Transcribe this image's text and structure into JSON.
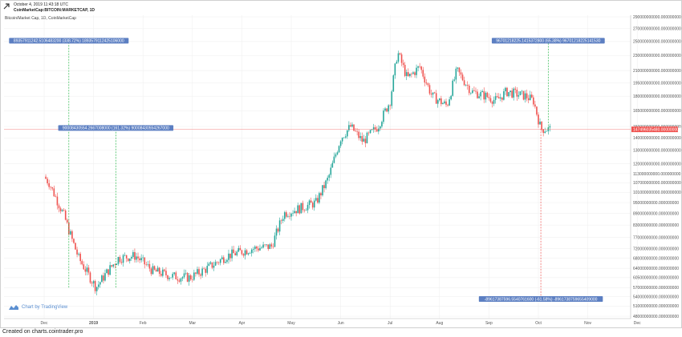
{
  "header": {
    "date": "October 4, 2019 11:43:18 UTC",
    "symbol": "CoinMarketCap:BITCOIN:MARKETCAP, 1D",
    "series": "Bitcoin/Market Cap, 1D, CoinMarketCap"
  },
  "badge": {
    "text": "Chart by TradingView",
    "icon": "tradingview-logo-icon"
  },
  "footer": {
    "text": "Created on charts.cointrader.pro"
  },
  "colors": {
    "up": "#26a69a",
    "down": "#ef5350",
    "measure_up": "#2db84d",
    "measure_down": "#ef5350",
    "label_bg": "#5c7fc2",
    "price_tag": "#ef5350"
  },
  "chart_data": {
    "type": "candlestick",
    "x_ticks": [
      "Dec",
      "2019",
      "Feb",
      "Mar",
      "Apr",
      "May",
      "Jun",
      "Jul",
      "Aug",
      "Sep",
      "Oct",
      "Nov",
      "Dec"
    ],
    "y_ticks": [
      "290000000000.000000000",
      "270000000000.000000000",
      "250000000000.000000000",
      "230000000000.000000000",
      "210000000000.000000000",
      "195000000000.000000000",
      "180000000000.000000000",
      "165000000000.000000000",
      "150000000000.000000000",
      "140000000000.000000000",
      "130000000000.000000000",
      "120000000000.000000000",
      "113000000000.000000000",
      "107000000000.000000000",
      "101000000000.000000000",
      "95000000000.000000000",
      "89000000000.000000000",
      "83000000000.000000000",
      "77000000000.000000000",
      "72000000000.000000000",
      "68000000000.000000000",
      "64000000000.000000000",
      "60500000000.000000000",
      "57000000000.000000000",
      "54000000000.000000000",
      "51000000000.000000000",
      "48000000000.000000000"
    ],
    "last_price": "147496035480.000000000",
    "anchors": [
      {
        "x": 0.0,
        "v": 111000000000
      },
      {
        "x": 0.1,
        "v": 107000000000
      },
      {
        "x": 0.4,
        "v": 88000000000
      },
      {
        "x": 0.55,
        "v": 77000000000
      },
      {
        "x": 0.7,
        "v": 68000000000
      },
      {
        "x": 1.05,
        "v": 57000000000
      },
      {
        "x": 1.25,
        "v": 62000000000
      },
      {
        "x": 1.5,
        "v": 68000000000
      },
      {
        "x": 1.85,
        "v": 69000000000
      },
      {
        "x": 2.2,
        "v": 63000000000
      },
      {
        "x": 2.6,
        "v": 61000000000
      },
      {
        "x": 2.95,
        "v": 60500000000
      },
      {
        "x": 3.3,
        "v": 64000000000
      },
      {
        "x": 3.7,
        "v": 69000000000
      },
      {
        "x": 4.2,
        "v": 72000000000
      },
      {
        "x": 4.6,
        "v": 73000000000
      },
      {
        "x": 4.85,
        "v": 89000000000
      },
      {
        "x": 5.2,
        "v": 92000000000
      },
      {
        "x": 5.5,
        "v": 95000000000
      },
      {
        "x": 5.75,
        "v": 110000000000
      },
      {
        "x": 6.0,
        "v": 140000000000
      },
      {
        "x": 6.2,
        "v": 150000000000
      },
      {
        "x": 6.45,
        "v": 137000000000
      },
      {
        "x": 6.75,
        "v": 150000000000
      },
      {
        "x": 7.0,
        "v": 175000000000
      },
      {
        "x": 7.15,
        "v": 235000000000
      },
      {
        "x": 7.35,
        "v": 200000000000
      },
      {
        "x": 7.6,
        "v": 215000000000
      },
      {
        "x": 7.85,
        "v": 180000000000
      },
      {
        "x": 8.15,
        "v": 170000000000
      },
      {
        "x": 8.35,
        "v": 210000000000
      },
      {
        "x": 8.65,
        "v": 185000000000
      },
      {
        "x": 8.95,
        "v": 180000000000
      },
      {
        "x": 9.15,
        "v": 175000000000
      },
      {
        "x": 9.35,
        "v": 185000000000
      },
      {
        "x": 9.75,
        "v": 180000000000
      },
      {
        "x": 9.9,
        "v": 175000000000
      },
      {
        "x": 10.05,
        "v": 148000000000
      },
      {
        "x": 10.25,
        "v": 147500000000
      }
    ],
    "measures": [
      {
        "label": "89357911242.5106483200 (338.72%) 1893579112425106000",
        "color": "up",
        "x": 0.5,
        "v_from": 57000000000,
        "v_to": 250000000000
      },
      {
        "label": "90008430554.2667008000 (161.32%) 90008430554267000",
        "color": "up",
        "x": 1.45,
        "v_from": 57000000000,
        "v_to": 148000000000
      },
      {
        "label": "96701218225.1415372800 (65.38%) 96701218225141530",
        "color": "up",
        "x": 10.2,
        "v_from": 148000000000,
        "v_to": 250000000000
      },
      {
        "label": "-89617387596.5540761600 (-61.58%) -8961738759655409000",
        "color": "down",
        "x": 10.05,
        "v_from": 148000000000,
        "v_to": 54000000000
      }
    ]
  }
}
